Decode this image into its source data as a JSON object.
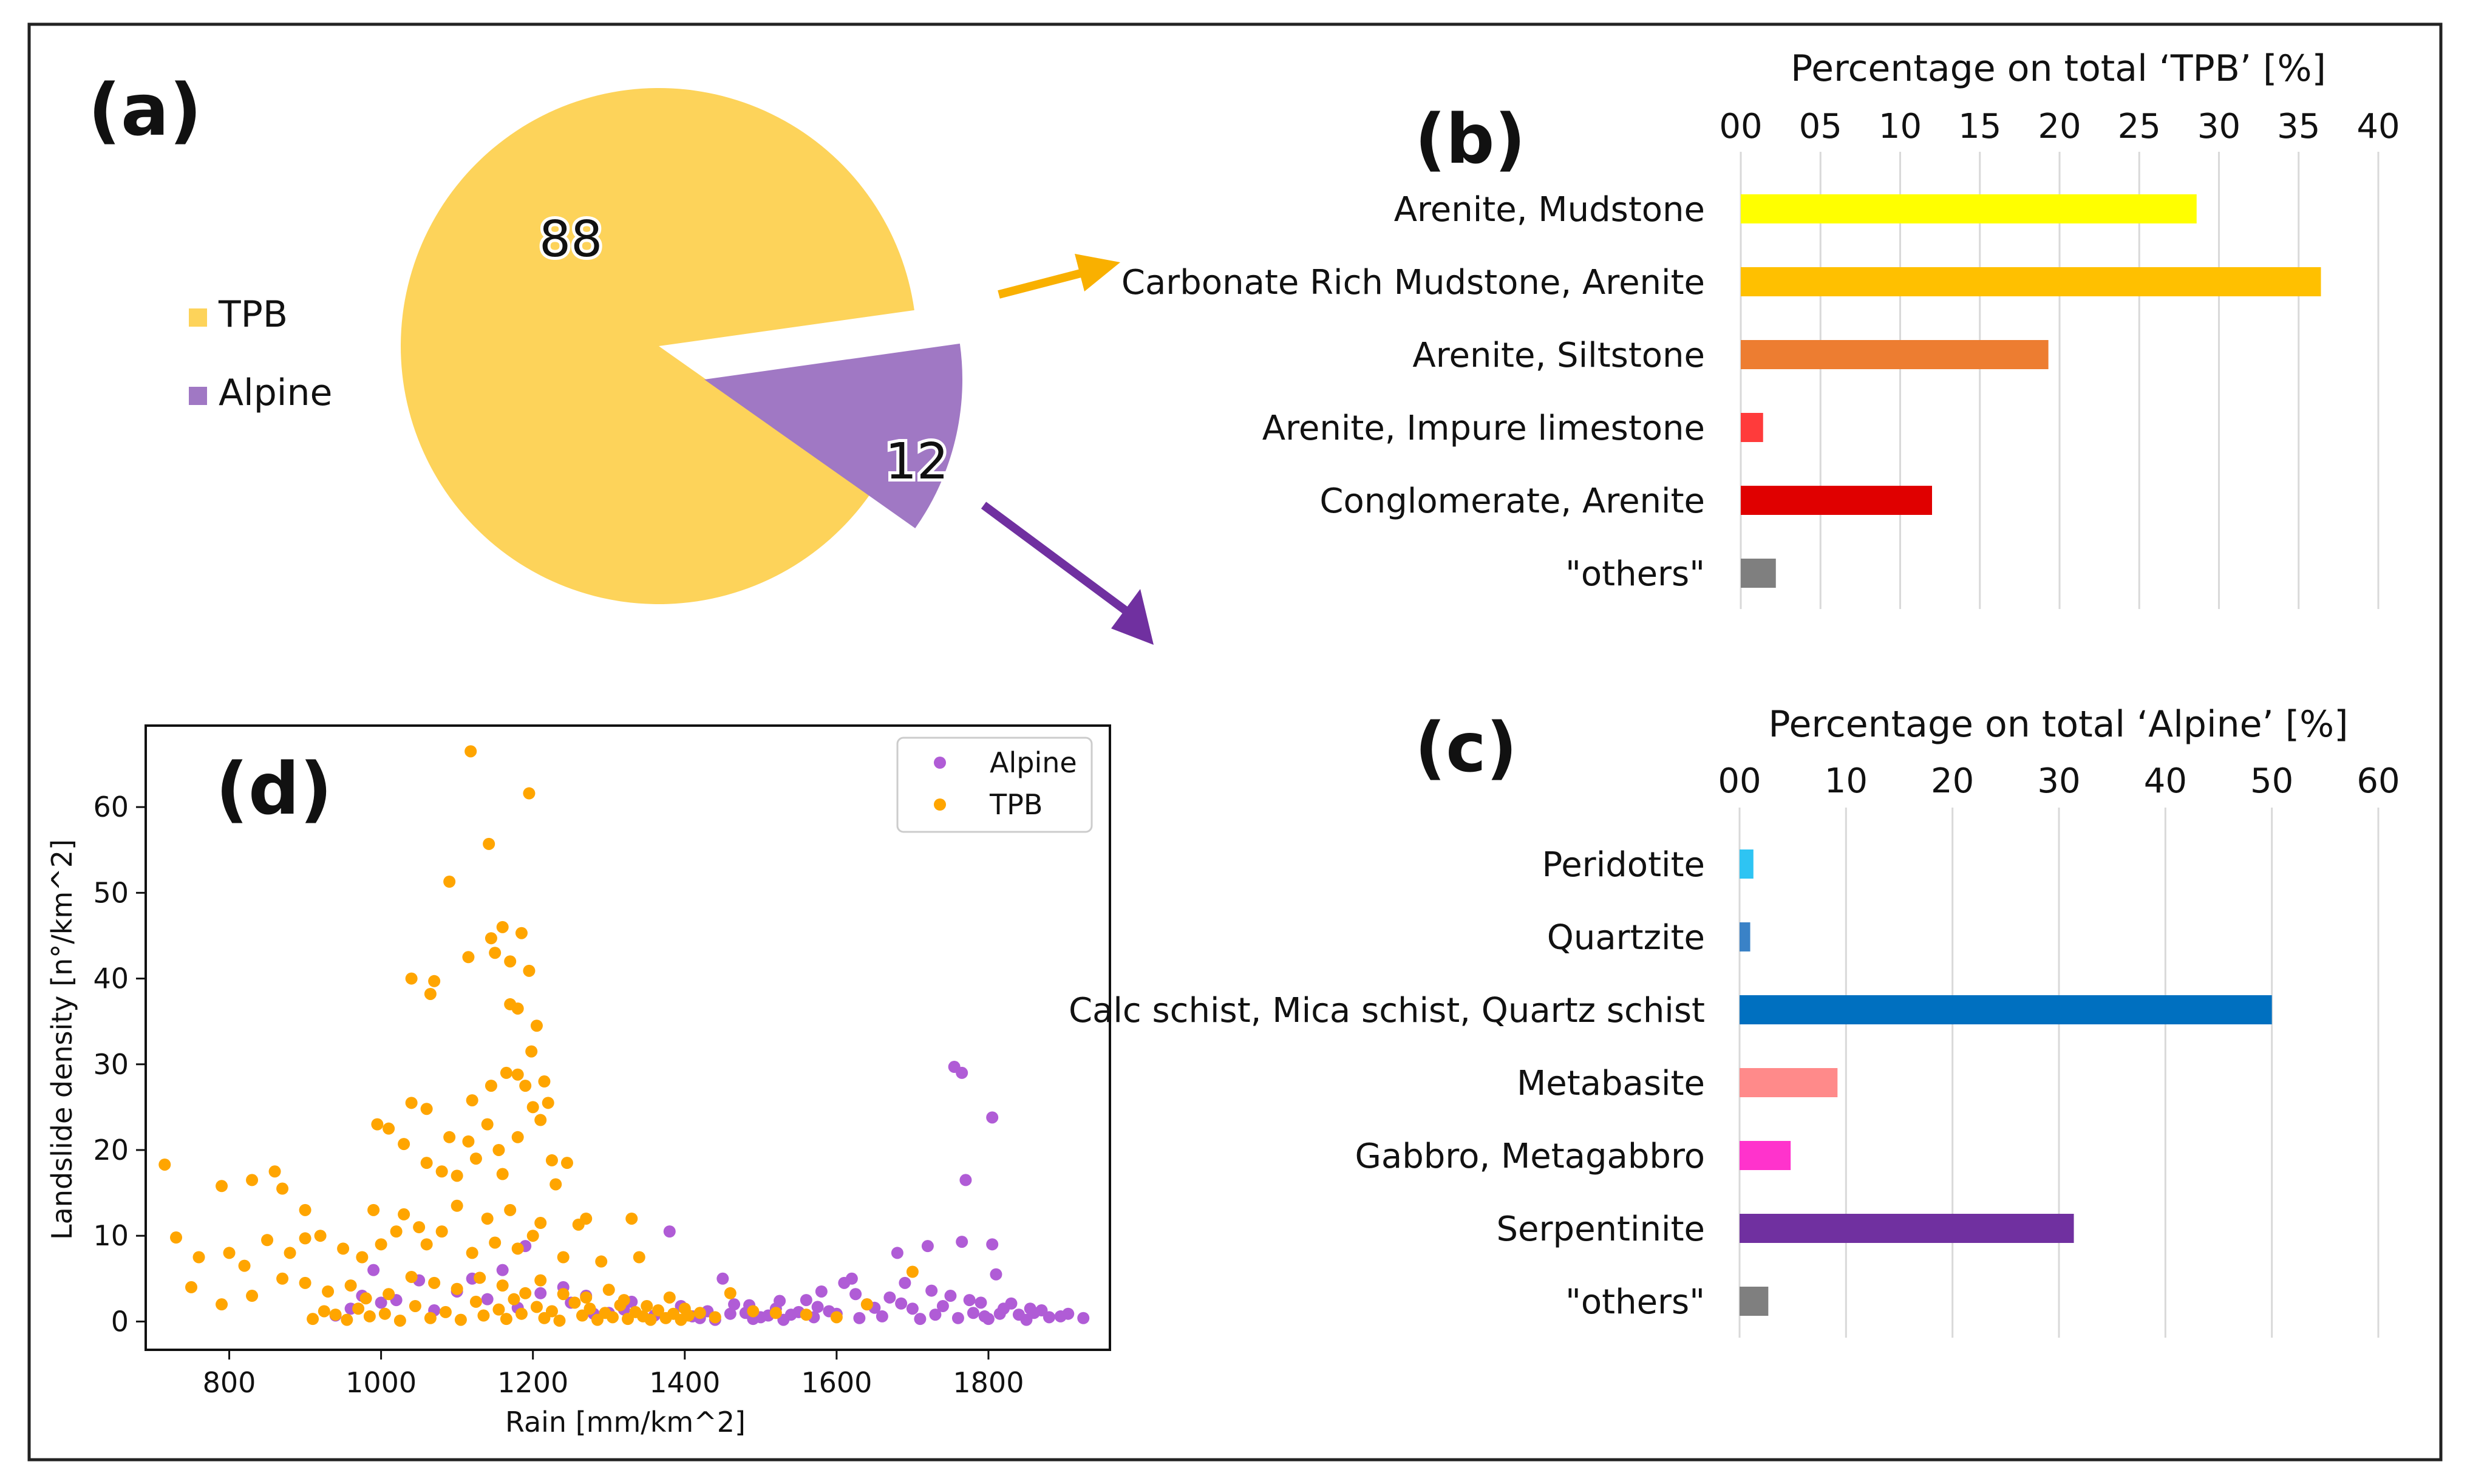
{
  "figure": {
    "panel_labels": {
      "a": "(a)",
      "b": "(b)",
      "c": "(c)",
      "d": "(d)"
    }
  },
  "chart_data": [
    {
      "id": "a",
      "type": "pie",
      "labels": [
        "TPB",
        "Alpine"
      ],
      "values": [
        88,
        12
      ],
      "value_labels": [
        "88",
        "12"
      ],
      "colors": [
        "#FDD35A",
        "#A078C4"
      ],
      "legend": [
        "TPB",
        "Alpine"
      ],
      "legend_position": "left",
      "exploded": "Alpine"
    },
    {
      "id": "b",
      "type": "bar",
      "orientation": "horizontal",
      "title": "Percentage on total ‘TPB’ [%]",
      "categories": [
        "Arenite, Mudstone",
        "Carbonate Rich Mudstone, Arenite",
        "Arenite, Siltstone",
        "Arenite, Impure limestone",
        "Conglomerate, Arenite",
        "\"others\""
      ],
      "values": [
        28.6,
        36.4,
        19.3,
        1.4,
        12.0,
        2.2
      ],
      "colors": [
        "#FFFF00",
        "#FFC000",
        "#ED7D31",
        "#FF3B3B",
        "#E00000",
        "#7F7F7F"
      ],
      "ticks": [
        "00",
        "05",
        "10",
        "15",
        "20",
        "25",
        "30",
        "35",
        "40"
      ],
      "xlim": [
        0,
        40
      ],
      "grid": true
    },
    {
      "id": "c",
      "type": "bar",
      "orientation": "horizontal",
      "title": "Percentage on total ‘Alpine’ [%]",
      "categories": [
        "Peridotite",
        "Quartzite",
        "Calc schist, Mica schist, Quartz schist",
        "Metabasite",
        "Gabbro, Metagabbro",
        "Serpentinite",
        "\"others\""
      ],
      "values": [
        1.3,
        1.0,
        50.0,
        9.2,
        4.8,
        31.4,
        2.7
      ],
      "colors": [
        "#2EC4F3",
        "#3A82C7",
        "#0070C0",
        "#FF8A8A",
        "#FF33CC",
        "#7030A0",
        "#7F7F7F"
      ],
      "ticks": [
        "00",
        "10",
        "20",
        "30",
        "40",
        "50",
        "60"
      ],
      "xlim": [
        0,
        60
      ],
      "grid": true
    },
    {
      "id": "d",
      "type": "scatter",
      "xlabel": "Rain [mm/km^2]",
      "ylabel": "Landslide density [n°/km^2]",
      "xlim": [
        690,
        1960
      ],
      "ylim": [
        -3.3,
        69.5
      ],
      "xticks": [
        "800",
        "1000",
        "1200",
        "1400",
        "1600",
        "1800"
      ],
      "yticks": [
        "0",
        "10",
        "20",
        "30",
        "40",
        "50",
        "60"
      ],
      "legend_position": "top-right",
      "series": [
        {
          "name": "Alpine",
          "color": "#B05CD6",
          "points": [
            [
              1755,
              29.7
            ],
            [
              1765,
              29
            ],
            [
              1805,
              23.8
            ],
            [
              1770,
              16.5
            ],
            [
              1765,
              9.3
            ],
            [
              1805,
              9
            ],
            [
              1810,
              5.5
            ],
            [
              1720,
              8.8
            ],
            [
              1680,
              8
            ],
            [
              1690,
              4.5
            ],
            [
              1610,
              4.5
            ],
            [
              1620,
              5
            ],
            [
              1580,
              3.5
            ],
            [
              1560,
              2.5
            ],
            [
              1450,
              5
            ],
            [
              1465,
              2
            ],
            [
              1480,
              1
            ],
            [
              1500,
              0.5
            ],
            [
              1520,
              1.5
            ],
            [
              1540,
              0.8
            ],
            [
              1590,
              1.2
            ],
            [
              1640,
              2
            ],
            [
              1700,
              1.5
            ],
            [
              1730,
              0.8
            ],
            [
              1750,
              3
            ],
            [
              1780,
              1
            ],
            [
              1790,
              2.2
            ],
            [
              1820,
              1.5
            ],
            [
              1840,
              0.8
            ],
            [
              1860,
              1
            ],
            [
              1880,
              0.5
            ],
            [
              1925,
              0.4
            ],
            [
              1410,
              0.6
            ],
            [
              1430,
              1.2
            ],
            [
              1440,
              0.2
            ],
            [
              1460,
              0.9
            ],
            [
              1490,
              0.3
            ],
            [
              1510,
              0.7
            ],
            [
              1530,
              0.2
            ],
            [
              1550,
              1.1
            ],
            [
              1570,
              0.5
            ],
            [
              1600,
              0.9
            ],
            [
              1630,
              0.4
            ],
            [
              1650,
              1.6
            ],
            [
              1660,
              0.6
            ],
            [
              1670,
              2.8
            ],
            [
              1710,
              0.3
            ],
            [
              1740,
              1.8
            ],
            [
              1760,
              0.4
            ],
            [
              1775,
              2.5
            ],
            [
              1800,
              0.3
            ],
            [
              1815,
              0.9
            ],
            [
              1830,
              2.1
            ],
            [
              1850,
              0.2
            ],
            [
              1870,
              1.3
            ],
            [
              1895,
              0.6
            ],
            [
              1380,
              10.5
            ],
            [
              1330,
              2.3
            ],
            [
              1300,
              1
            ],
            [
              1270,
              3
            ],
            [
              1240,
              4
            ],
            [
              1190,
              8.8
            ],
            [
              1160,
              6
            ],
            [
              1120,
              5
            ],
            [
              1100,
              3.5
            ],
            [
              1050,
              4.8
            ],
            [
              1020,
              2.5
            ],
            [
              990,
              6
            ],
            [
              975,
              3
            ],
            [
              960,
              1.5
            ],
            [
              940,
              0.7
            ],
            [
              1000,
              2.2
            ],
            [
              1070,
              1.3
            ],
            [
              1140,
              2.6
            ],
            [
              1180,
              1.6
            ],
            [
              1210,
              3.3
            ],
            [
              1250,
              2.2
            ],
            [
              1280,
              0.9
            ],
            [
              1320,
              1.4
            ],
            [
              1360,
              0.7
            ],
            [
              1395,
              1.8
            ],
            [
              1420,
              0.4
            ],
            [
              1485,
              1.9
            ],
            [
              1525,
              2.4
            ],
            [
              1575,
              1.7
            ],
            [
              1625,
              3.2
            ],
            [
              1685,
              2.1
            ],
            [
              1725,
              3.6
            ],
            [
              1795,
              0.6
            ],
            [
              1855,
              1.5
            ],
            [
              1905,
              0.9
            ]
          ]
        },
        {
          "name": "TPB",
          "color": "#FFA500",
          "points": [
            [
              1118,
              66.5
            ],
            [
              1195,
              61.6
            ],
            [
              1142,
              55.7
            ],
            [
              1090,
              51.3
            ],
            [
              1160,
              46
            ],
            [
              1185,
              45.3
            ],
            [
              1145,
              44.7
            ],
            [
              1115,
              42.5
            ],
            [
              1150,
              43
            ],
            [
              1170,
              42
            ],
            [
              1195,
              40.9
            ],
            [
              1040,
              40
            ],
            [
              1070,
              39.7
            ],
            [
              1065,
              38.2
            ],
            [
              1170,
              37
            ],
            [
              1180,
              36.5
            ],
            [
              1205,
              34.5
            ],
            [
              1198,
              31.5
            ],
            [
              1165,
              29
            ],
            [
              1180,
              28.8
            ],
            [
              1190,
              27.5
            ],
            [
              1215,
              28
            ],
            [
              1145,
              27.5
            ],
            [
              1220,
              25.5
            ],
            [
              1040,
              25.5
            ],
            [
              1120,
              25.8
            ],
            [
              1200,
              25
            ],
            [
              1060,
              24.8
            ],
            [
              995,
              23
            ],
            [
              1010,
              22.5
            ],
            [
              1140,
              23
            ],
            [
              1210,
              23.5
            ],
            [
              1090,
              21.5
            ],
            [
              1115,
              21
            ],
            [
              1180,
              21.5
            ],
            [
              1155,
              20
            ],
            [
              1030,
              20.7
            ],
            [
              1125,
              19
            ],
            [
              1060,
              18.5
            ],
            [
              1225,
              18.8
            ],
            [
              1245,
              18.5
            ],
            [
              715,
              18.3
            ],
            [
              860,
              17.5
            ],
            [
              830,
              16.5
            ],
            [
              790,
              15.8
            ],
            [
              870,
              15.5
            ],
            [
              1080,
              17.5
            ],
            [
              1100,
              17
            ],
            [
              1160,
              17.2
            ],
            [
              1230,
              16
            ],
            [
              1270,
              12
            ],
            [
              1330,
              12
            ],
            [
              900,
              13
            ],
            [
              990,
              13
            ],
            [
              1030,
              12.5
            ],
            [
              1050,
              11
            ],
            [
              1100,
              13.5
            ],
            [
              1140,
              12
            ],
            [
              1170,
              13
            ],
            [
              1210,
              11.5
            ],
            [
              1260,
              11.3
            ],
            [
              730,
              9.8
            ],
            [
              760,
              7.5
            ],
            [
              800,
              8
            ],
            [
              820,
              6.5
            ],
            [
              850,
              9.5
            ],
            [
              880,
              8
            ],
            [
              900,
              9.7
            ],
            [
              920,
              10
            ],
            [
              950,
              8.5
            ],
            [
              975,
              7.5
            ],
            [
              1000,
              9
            ],
            [
              1020,
              10.5
            ],
            [
              1060,
              9
            ],
            [
              1080,
              10.5
            ],
            [
              1120,
              8
            ],
            [
              1150,
              9.2
            ],
            [
              1180,
              8.5
            ],
            [
              1200,
              10
            ],
            [
              1240,
              7.5
            ],
            [
              1290,
              7
            ],
            [
              1340,
              7.5
            ],
            [
              750,
              4
            ],
            [
              790,
              2
            ],
            [
              830,
              3
            ],
            [
              870,
              5
            ],
            [
              900,
              4.5
            ],
            [
              930,
              3.5
            ],
            [
              960,
              4.2
            ],
            [
              980,
              2.7
            ],
            [
              1010,
              3.2
            ],
            [
              1040,
              5.2
            ],
            [
              1070,
              4.5
            ],
            [
              1100,
              3.8
            ],
            [
              1130,
              5.1
            ],
            [
              1160,
              4.2
            ],
            [
              1190,
              3.3
            ],
            [
              1210,
              4.8
            ],
            [
              1240,
              3.2
            ],
            [
              1270,
              2.8
            ],
            [
              1300,
              3.7
            ],
            [
              1320,
              2.5
            ],
            [
              1350,
              1.8
            ],
            [
              1380,
              2.8
            ],
            [
              1400,
              1.5
            ],
            [
              1420,
              1
            ],
            [
              1440,
              0.5
            ],
            [
              1460,
              3.3
            ],
            [
              1490,
              1.2
            ],
            [
              1520,
              1
            ],
            [
              1560,
              0.8
            ],
            [
              1600,
              0.5
            ],
            [
              1640,
              2
            ],
            [
              1700,
              5.8
            ],
            [
              910,
              0.3
            ],
            [
              925,
              1.2
            ],
            [
              940,
              0.8
            ],
            [
              955,
              0.2
            ],
            [
              970,
              1.5
            ],
            [
              985,
              0.6
            ],
            [
              1005,
              0.9
            ],
            [
              1025,
              0.1
            ],
            [
              1045,
              1.8
            ],
            [
              1065,
              0.4
            ],
            [
              1085,
              1.1
            ],
            [
              1105,
              0.2
            ],
            [
              1125,
              2.3
            ],
            [
              1135,
              0.7
            ],
            [
              1155,
              1.4
            ],
            [
              1165,
              0.3
            ],
            [
              1175,
              2.6
            ],
            [
              1185,
              0.9
            ],
            [
              1205,
              1.7
            ],
            [
              1215,
              0.4
            ],
            [
              1225,
              1.2
            ],
            [
              1235,
              0.1
            ],
            [
              1255,
              2.2
            ],
            [
              1265,
              0.7
            ],
            [
              1275,
              1.5
            ],
            [
              1285,
              0.2
            ],
            [
              1295,
              1
            ],
            [
              1305,
              0.5
            ],
            [
              1315,
              1.9
            ],
            [
              1325,
              0.3
            ],
            [
              1335,
              1.1
            ],
            [
              1345,
              0.6
            ],
            [
              1355,
              0.2
            ],
            [
              1365,
              1.3
            ],
            [
              1375,
              0.4
            ],
            [
              1385,
              0.9
            ],
            [
              1395,
              0.2
            ],
            [
              1405,
              0.7
            ]
          ]
        }
      ]
    }
  ]
}
